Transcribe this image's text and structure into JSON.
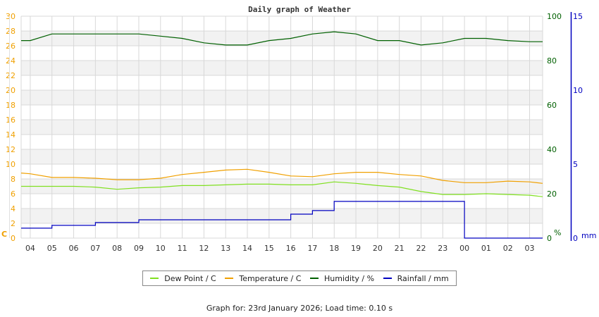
{
  "page": {
    "footer_text": "Graph for: 23rd January 2026; Load time: 0.10 s"
  },
  "legend": {
    "items": [
      {
        "label": "Dew Point / C",
        "color": "#80e020"
      },
      {
        "label": "Temperature / C",
        "color": "#f0a000"
      },
      {
        "label": "Humidity / %",
        "color": "#006000"
      },
      {
        "label": "Rainfall / mm",
        "color": "#0000c0"
      }
    ]
  },
  "chart_data": {
    "type": "line",
    "title": "Daily graph of Weather",
    "xlabel": "",
    "x_tick_labels": [
      "04",
      "05",
      "06",
      "07",
      "08",
      "09",
      "10",
      "11",
      "12",
      "13",
      "14",
      "15",
      "16",
      "17",
      "18",
      "19",
      "20",
      "21",
      "22",
      "23",
      "00",
      "01",
      "02",
      "03"
    ],
    "x_range_hours": [
      3.58,
      27.6
    ],
    "grid": true,
    "legend_position": "bottom",
    "axes": {
      "left": {
        "label": "C",
        "color": "#f0a000",
        "ylim": [
          0,
          30
        ],
        "ticks": [
          0,
          2,
          4,
          6,
          8,
          10,
          12,
          14,
          16,
          18,
          20,
          22,
          24,
          26,
          28,
          30
        ]
      },
      "right_humidity": {
        "label": "%",
        "color": "#006000",
        "ylim": [
          0,
          100
        ],
        "ticks": [
          0,
          20,
          40,
          60,
          80,
          100
        ]
      },
      "right_rainfall": {
        "label": "mm",
        "color": "#0000c0",
        "ylim": [
          0,
          15
        ],
        "ticks": [
          0,
          5,
          10,
          15
        ]
      }
    },
    "x": [
      3.58,
      4,
      5,
      6,
      7,
      8,
      9,
      10,
      11,
      12,
      13,
      14,
      15,
      16,
      17,
      18,
      19,
      20,
      21,
      22,
      23,
      24,
      25,
      26,
      27,
      27.6
    ],
    "series": [
      {
        "name": "Dew Point / C",
        "axis": "left",
        "color": "#80e020",
        "values": [
          7.0,
          7.0,
          7.0,
          7.0,
          6.9,
          6.6,
          6.8,
          6.9,
          7.1,
          7.1,
          7.2,
          7.3,
          7.3,
          7.2,
          7.2,
          7.6,
          7.4,
          7.1,
          6.9,
          6.3,
          5.9,
          5.9,
          6.0,
          5.9,
          5.8,
          5.6
        ]
      },
      {
        "name": "Temperature / C",
        "axis": "left",
        "color": "#f0a000",
        "values": [
          8.8,
          8.7,
          8.2,
          8.2,
          8.1,
          7.9,
          7.9,
          8.1,
          8.6,
          8.9,
          9.2,
          9.3,
          8.9,
          8.4,
          8.3,
          8.7,
          8.9,
          8.9,
          8.6,
          8.4,
          7.8,
          7.5,
          7.5,
          7.7,
          7.6,
          7.4
        ]
      },
      {
        "name": "Humidity / %",
        "axis": "right_humidity",
        "color": "#006000",
        "values": [
          89,
          89,
          92,
          92,
          92,
          92,
          92,
          91,
          90,
          88,
          87,
          87,
          89,
          90,
          92,
          93,
          92,
          89,
          89,
          87,
          88,
          90,
          90,
          89,
          88.5,
          88.5
        ]
      },
      {
        "name": "Rainfall / mm",
        "axis": "right_rainfall",
        "color": "#0000c0",
        "step": true,
        "values": [
          0.67,
          0.67,
          0.86,
          0.86,
          1.05,
          1.05,
          1.24,
          1.24,
          1.24,
          1.24,
          1.24,
          1.24,
          1.24,
          1.62,
          1.86,
          2.48,
          2.48,
          2.48,
          2.48,
          2.48,
          2.48,
          0,
          0,
          0,
          0,
          0
        ]
      }
    ]
  }
}
